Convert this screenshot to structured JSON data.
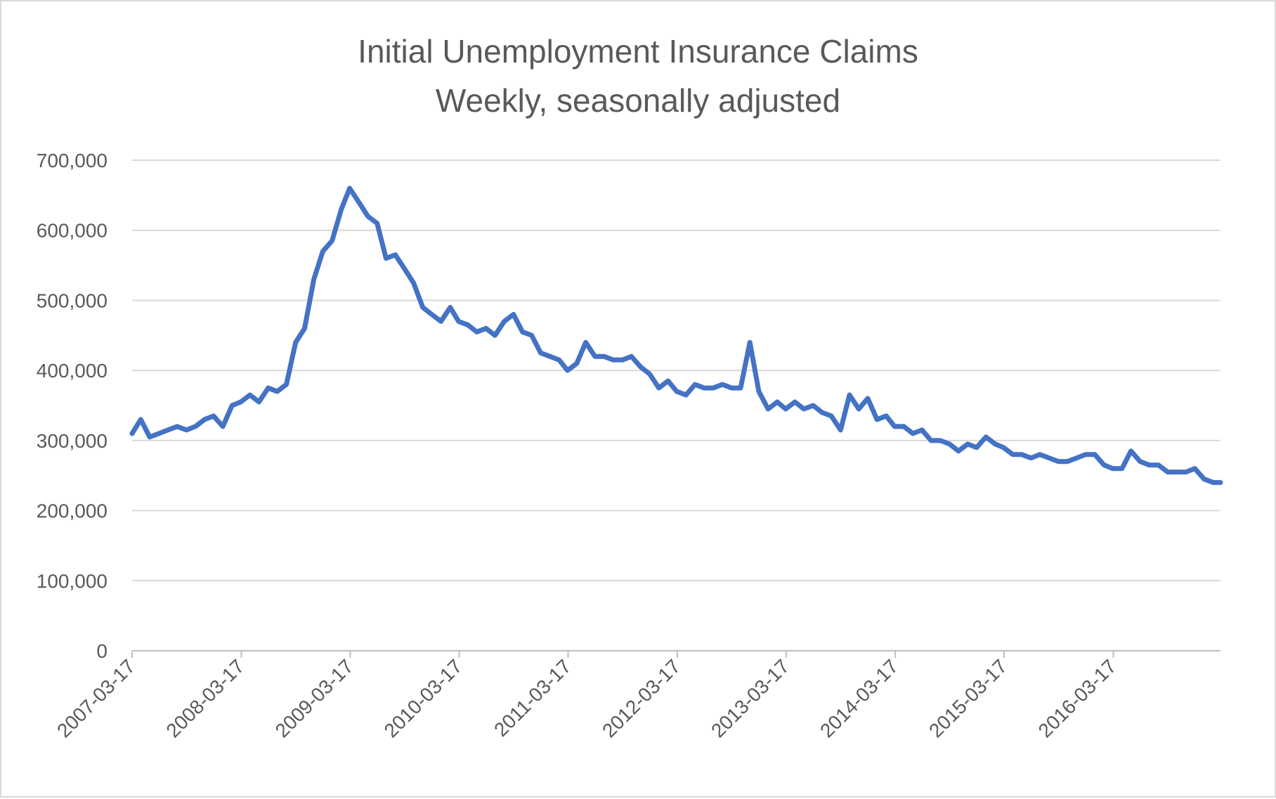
{
  "chart_data": {
    "type": "line",
    "title": "Initial Unemployment Insurance Claims",
    "subtitle": "Weekly, seasonally adjusted",
    "xlabel": "",
    "ylabel": "",
    "ylim": [
      0,
      700000
    ],
    "yticks": [
      "0",
      "100,000",
      "200,000",
      "300,000",
      "400,000",
      "500,000",
      "600,000",
      "700,000"
    ],
    "xticks": [
      "2007-03-17",
      "2008-03-17",
      "2009-03-17",
      "2010-03-17",
      "2011-03-17",
      "2012-03-17",
      "2013-03-17",
      "2014-03-17",
      "2015-03-17",
      "2016-03-17"
    ],
    "xlim": [
      "2007-03-17",
      "2017-03-11"
    ],
    "grid": true,
    "legend": "none",
    "line_color": "#4472C4",
    "series": [
      {
        "x": [
          "2007-03",
          "2007-04",
          "2007-05",
          "2007-06",
          "2007-07",
          "2007-08",
          "2007-09",
          "2007-10",
          "2007-11",
          "2007-12",
          "2008-01",
          "2008-02",
          "2008-03",
          "2008-04",
          "2008-05",
          "2008-06",
          "2008-07",
          "2008-08",
          "2008-09",
          "2008-10",
          "2008-11",
          "2008-12",
          "2009-01",
          "2009-02",
          "2009-03",
          "2009-04",
          "2009-05",
          "2009-06",
          "2009-07",
          "2009-08",
          "2009-09",
          "2009-10",
          "2009-11",
          "2009-12",
          "2010-01",
          "2010-02",
          "2010-03",
          "2010-04",
          "2010-05",
          "2010-06",
          "2010-07",
          "2010-08",
          "2010-09",
          "2010-10",
          "2010-11",
          "2010-12",
          "2011-01",
          "2011-02",
          "2011-03",
          "2011-04",
          "2011-05",
          "2011-06",
          "2011-07",
          "2011-08",
          "2011-09",
          "2011-10",
          "2011-11",
          "2011-12",
          "2012-01",
          "2012-02",
          "2012-03",
          "2012-04",
          "2012-05",
          "2012-06",
          "2012-07",
          "2012-08",
          "2012-09",
          "2012-10",
          "2012-11",
          "2012-12",
          "2013-01",
          "2013-02",
          "2013-03",
          "2013-04",
          "2013-05",
          "2013-06",
          "2013-07",
          "2013-08",
          "2013-09",
          "2013-10",
          "2013-11",
          "2013-12",
          "2014-01",
          "2014-02",
          "2014-03",
          "2014-04",
          "2014-05",
          "2014-06",
          "2014-07",
          "2014-08",
          "2014-09",
          "2014-10",
          "2014-11",
          "2014-12",
          "2015-01",
          "2015-02",
          "2015-03",
          "2015-04",
          "2015-05",
          "2015-06",
          "2015-07",
          "2015-08",
          "2015-09",
          "2015-10",
          "2015-11",
          "2015-12",
          "2016-01",
          "2016-02",
          "2016-03",
          "2016-04",
          "2016-05",
          "2016-06",
          "2016-07",
          "2016-08",
          "2016-09",
          "2016-10",
          "2016-11",
          "2016-12",
          "2017-01",
          "2017-02",
          "2017-03"
        ],
        "values": [
          310000,
          330000,
          305000,
          310000,
          315000,
          320000,
          315000,
          320000,
          330000,
          335000,
          320000,
          350000,
          355000,
          365000,
          355000,
          375000,
          370000,
          380000,
          440000,
          460000,
          530000,
          570000,
          585000,
          630000,
          660000,
          640000,
          620000,
          610000,
          560000,
          565000,
          545000,
          525000,
          490000,
          480000,
          470000,
          490000,
          470000,
          465000,
          455000,
          460000,
          450000,
          470000,
          480000,
          455000,
          450000,
          425000,
          420000,
          415000,
          400000,
          410000,
          440000,
          420000,
          420000,
          415000,
          415000,
          420000,
          405000,
          395000,
          375000,
          385000,
          370000,
          365000,
          380000,
          375000,
          375000,
          380000,
          375000,
          375000,
          440000,
          370000,
          345000,
          355000,
          345000,
          355000,
          345000,
          350000,
          340000,
          335000,
          315000,
          365000,
          345000,
          360000,
          330000,
          335000,
          320000,
          320000,
          310000,
          315000,
          300000,
          300000,
          295000,
          285000,
          295000,
          290000,
          305000,
          295000,
          290000,
          280000,
          280000,
          275000,
          280000,
          275000,
          270000,
          270000,
          275000,
          280000,
          280000,
          265000,
          260000,
          260000,
          285000,
          270000,
          265000,
          265000,
          255000,
          255000,
          255000,
          260000,
          245000,
          240000,
          240000
        ]
      }
    ]
  }
}
